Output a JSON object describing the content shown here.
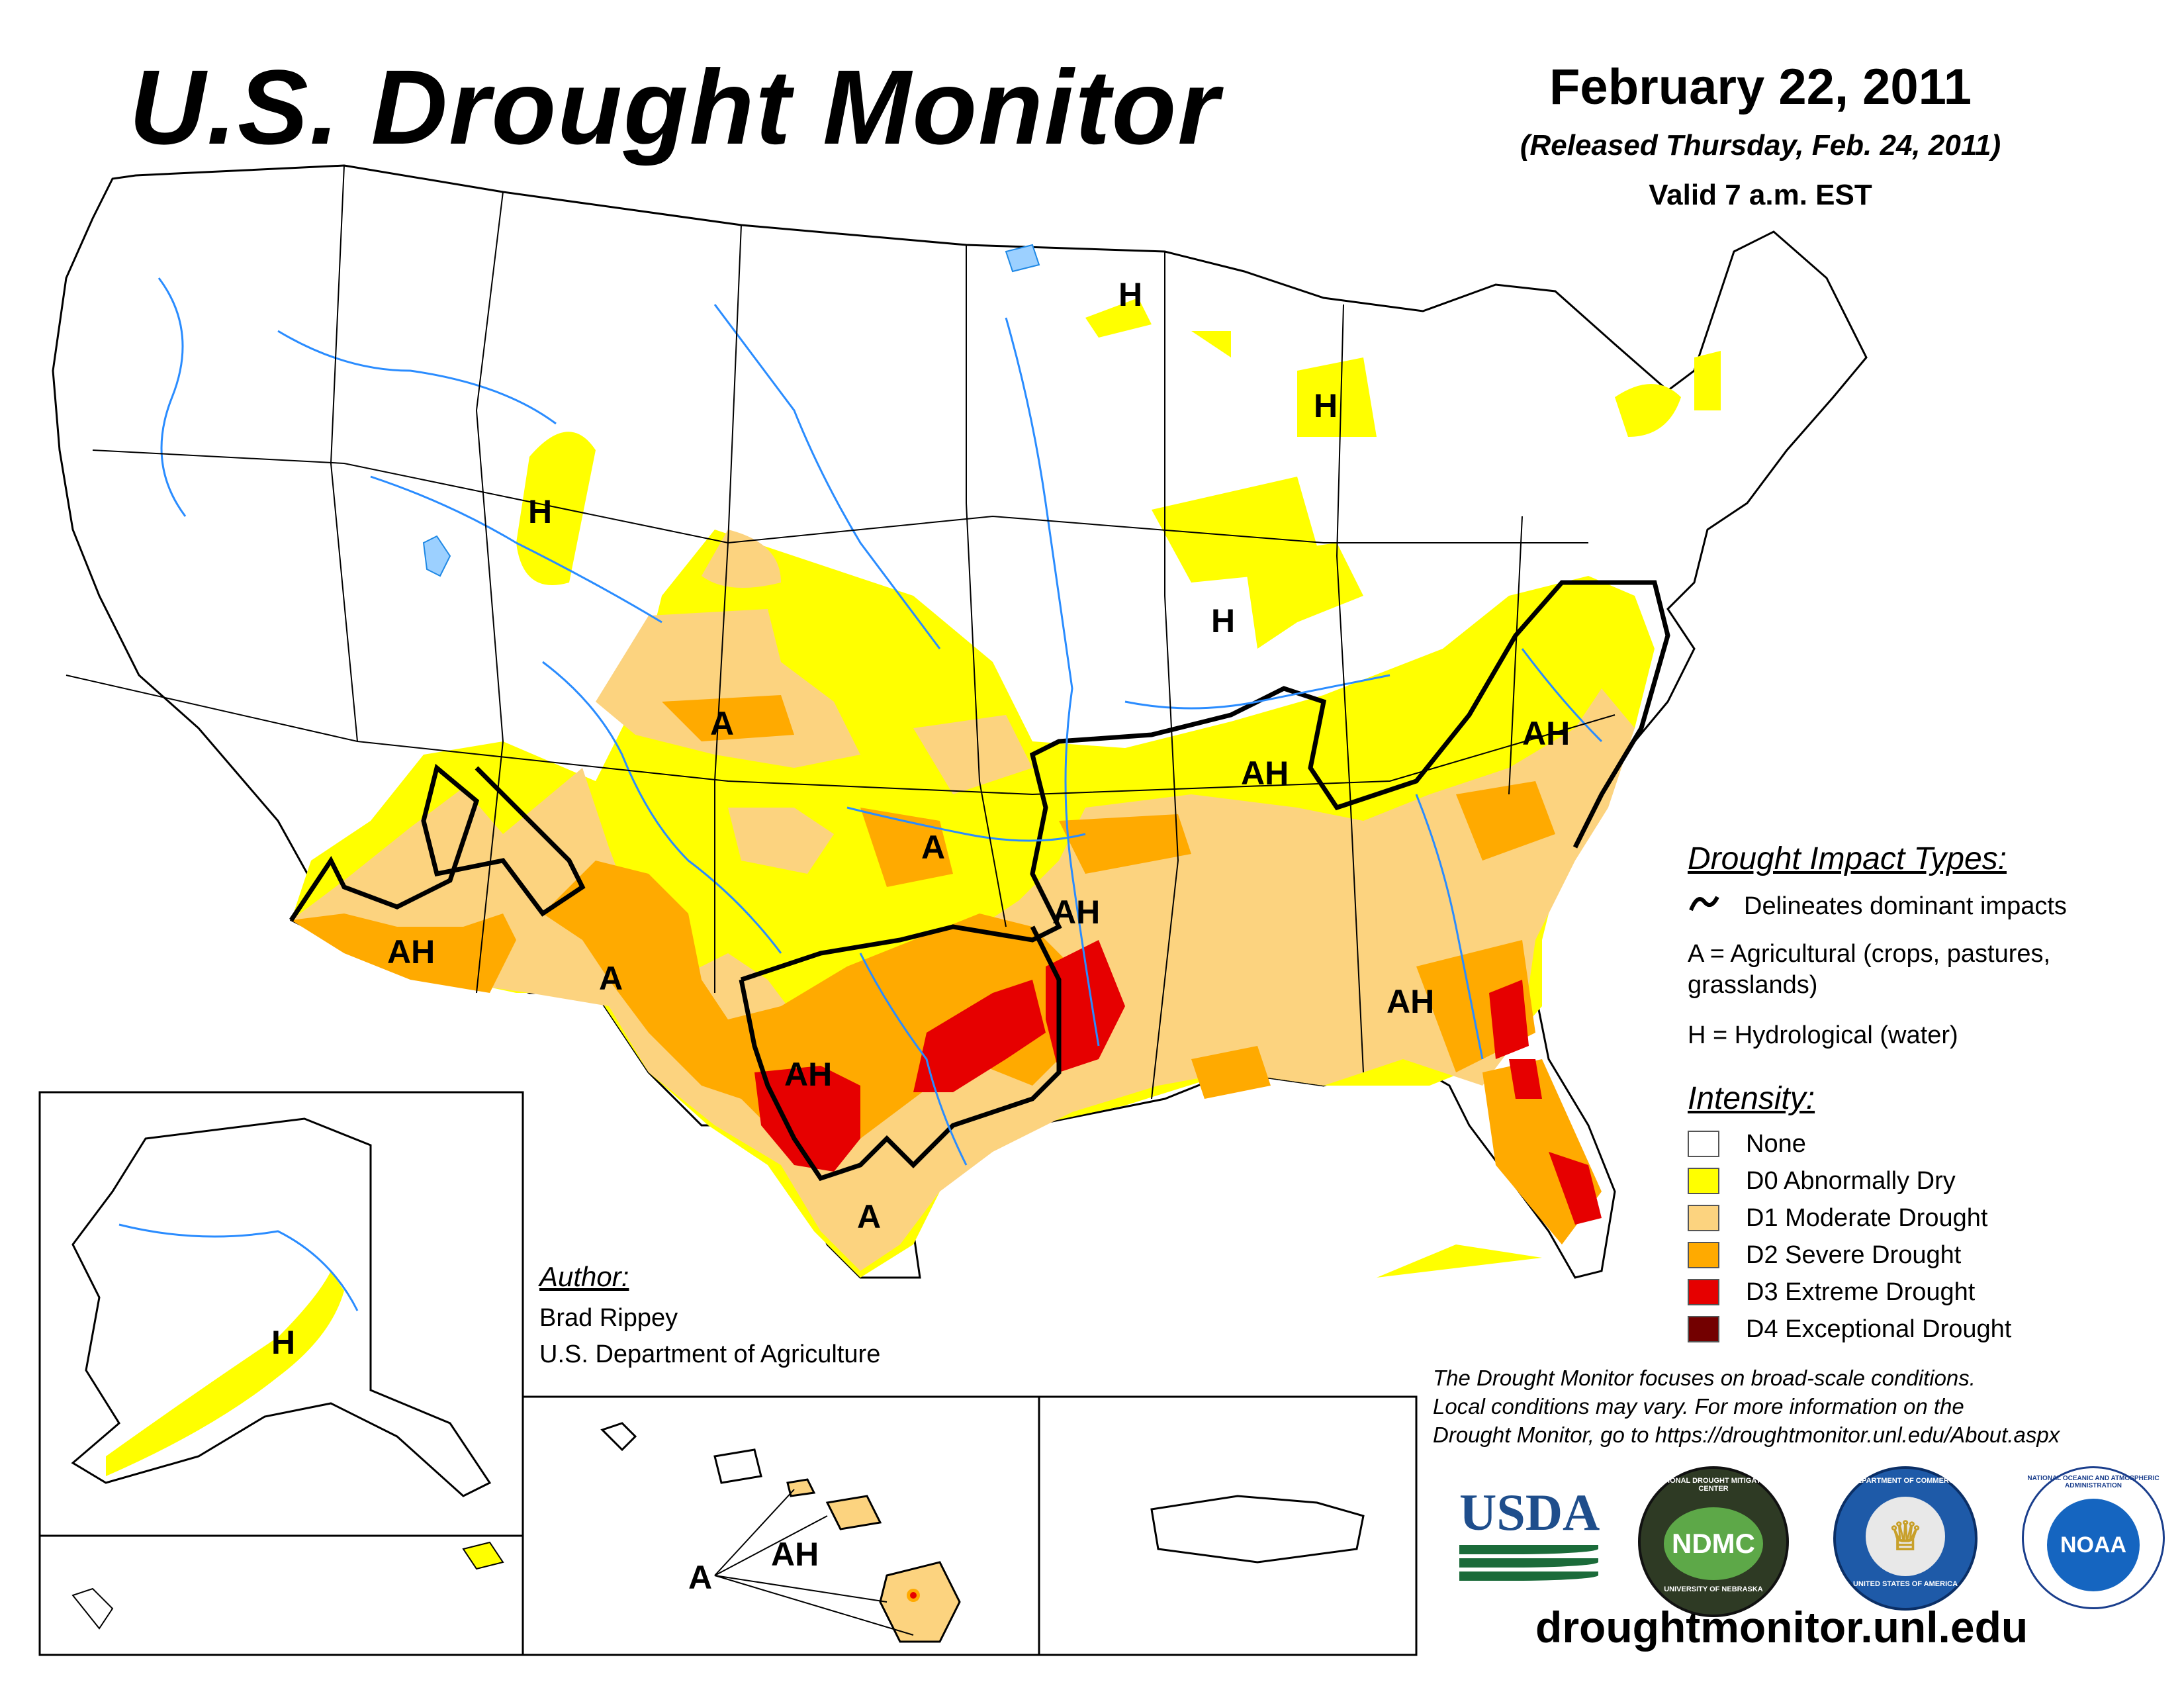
{
  "header": {
    "title": "U.S. Drought Monitor",
    "date": "February 22, 2011",
    "released": "(Released Thursday, Feb. 24, 2011)",
    "valid": "Valid 7 a.m. EST"
  },
  "impact_legend": {
    "heading": "Drought Impact Types:",
    "delineates": "Delineates dominant impacts",
    "agricultural": "A = Agricultural (crops, pastures,",
    "agricultural_cont": "grasslands)",
    "hydrological": "H = Hydrological (water)"
  },
  "intensity_legend": {
    "heading": "Intensity:",
    "items": [
      {
        "label": "None",
        "color": "#ffffff"
      },
      {
        "label": "D0 Abnormally Dry",
        "color": "#ffff00"
      },
      {
        "label": "D1 Moderate Drought",
        "color": "#fcd37f"
      },
      {
        "label": "D2 Severe Drought",
        "color": "#ffaa00"
      },
      {
        "label": "D3 Extreme Drought",
        "color": "#e60000"
      },
      {
        "label": "D4 Exceptional Drought",
        "color": "#730000"
      }
    ]
  },
  "author": {
    "heading": "Author:",
    "name": "Brad Rippey",
    "org": "U.S. Department of Agriculture"
  },
  "disclaimer": {
    "line1": "The Drought Monitor focuses on broad-scale conditions.",
    "line2": "Local conditions may vary. For more information on the",
    "line3": "Drought Monitor, go to https://droughtmonitor.unl.edu/About.aspx"
  },
  "logos": {
    "usda": "USDA",
    "ndmc": "NDMC",
    "ndmc_ring_top": "NATIONAL DROUGHT MITIGATION CENTER",
    "ndmc_ring_bottom": "UNIVERSITY OF NEBRASKA",
    "commerce_ring_top": "DEPARTMENT OF COMMERCE",
    "commerce_ring_bottom": "UNITED STATES OF AMERICA",
    "noaa": "NOAA",
    "noaa_ring": "NATIONAL OCEANIC AND ATMOSPHERIC ADMINISTRATION"
  },
  "footer_url": "droughtmonitor.unl.edu",
  "map_labels": {
    "h_upper_mi": "H",
    "h_mi": "H",
    "h_wy": "H",
    "h_il": "H",
    "a_co": "A",
    "a_ok": "A",
    "ah_az": "AH",
    "a_nm": "A",
    "ah_tx": "AH",
    "a_stx": "A",
    "ah_ar": "AH",
    "ah_ky": "AH",
    "ah_va": "AH",
    "ah_ga": "AH",
    "h_ak": "H",
    "a_hi": "A",
    "ah_hi": "AH"
  }
}
